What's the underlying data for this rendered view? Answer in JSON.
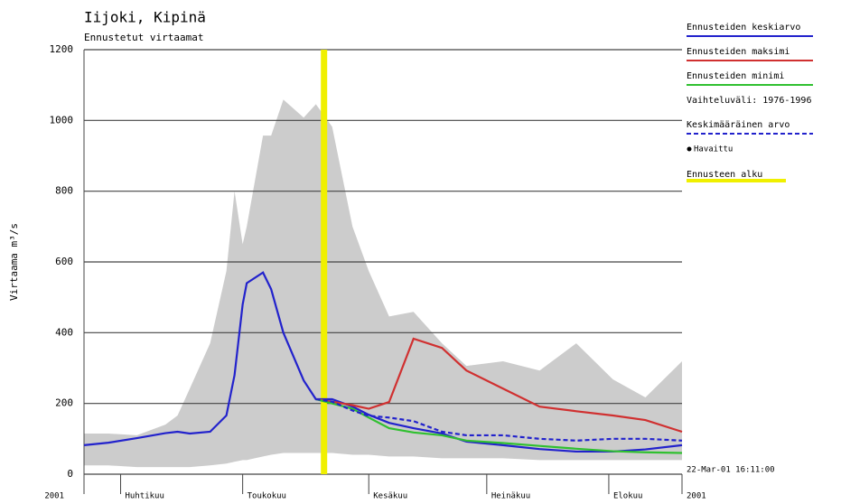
{
  "chart_data": {
    "type": "line",
    "title": "Iijoki, Kipinä",
    "subtitle": "Ennustetut virtaamat",
    "y_label": "Virtaama m³/s",
    "timestamp": "22-Mar-01 16:11:00",
    "x": [
      0,
      6,
      13,
      20,
      23,
      26,
      31,
      35,
      37,
      39,
      40,
      44,
      46,
      49,
      54,
      57,
      61,
      66,
      70,
      75,
      81,
      88,
      94,
      103,
      112,
      121,
      130,
      138,
      147
    ],
    "xlim": [
      0,
      147
    ],
    "xticks": [
      {
        "value": 0,
        "label": "2001"
      },
      {
        "value": 9,
        "label": "Huhtikuu"
      },
      {
        "value": 39,
        "label": "Toukokuu"
      },
      {
        "value": 70,
        "label": "Kesäkuu"
      },
      {
        "value": 99,
        "label": "Heinäkuu"
      },
      {
        "value": 129,
        "label": "Elokuu"
      },
      {
        "value": 147,
        "label": "2001"
      }
    ],
    "ylim": [
      0,
      1200
    ],
    "yticks": [
      0,
      200,
      400,
      600,
      800,
      1000,
      1200
    ],
    "grid": true,
    "band": {
      "name": "Vaihteluväli: 1976-1996",
      "color": "#cccccc",
      "upper": [
        115,
        115,
        110,
        140,
        166,
        242,
        370,
        574,
        800,
        650,
        700,
        957,
        957,
        1059,
        1008,
        1046,
        982,
        700,
        574,
        446,
        459,
        370,
        306,
        319,
        293,
        370,
        268,
        217,
        319
      ],
      "lower": [
        25,
        25,
        20,
        20,
        20,
        20,
        25,
        30,
        35,
        40,
        40,
        50,
        55,
        60,
        60,
        60,
        60,
        55,
        55,
        50,
        50,
        45,
        45,
        45,
        40,
        40,
        40,
        40,
        40
      ]
    },
    "series": [
      {
        "name": "Ennusteiden keskiarvo",
        "color": "#2222cc",
        "dash": false,
        "values": [
          82,
          89,
          102,
          116,
          120,
          115,
          120,
          166,
          280,
          480,
          540,
          570,
          523,
          400,
          265,
          212,
          212,
          191,
          168,
          145,
          130,
          115,
          92,
          82,
          71,
          64,
          64,
          70,
          82
        ]
      },
      {
        "name": "Ennusteiden maksimi",
        "color": "#d03030",
        "dash": false,
        "values": [
          null,
          null,
          null,
          null,
          null,
          null,
          null,
          null,
          null,
          null,
          null,
          null,
          null,
          null,
          null,
          212,
          205,
          195,
          185,
          204,
          383,
          357,
          293,
          242,
          191,
          178,
          166,
          153,
          120
        ]
      },
      {
        "name": "Ennusteiden minimi",
        "color": "#30c030",
        "dash": false,
        "values": [
          null,
          null,
          null,
          null,
          null,
          null,
          null,
          null,
          null,
          null,
          null,
          null,
          null,
          null,
          null,
          212,
          200,
          185,
          160,
          130,
          118,
          110,
          95,
          88,
          80,
          72,
          65,
          62,
          60
        ]
      },
      {
        "name": "Keskimääräinen arvo",
        "color": "#2222cc",
        "dash": true,
        "values": [
          null,
          null,
          null,
          null,
          null,
          null,
          null,
          null,
          null,
          null,
          null,
          null,
          null,
          null,
          null,
          212,
          205,
          180,
          165,
          160,
          150,
          120,
          110,
          110,
          100,
          95,
          100,
          100,
          95
        ]
      }
    ],
    "observed_label": "Havaittu",
    "forecast_start": 59,
    "forecast_start_label": "Ennusteen alku",
    "forecast_color": "#f0f000"
  }
}
